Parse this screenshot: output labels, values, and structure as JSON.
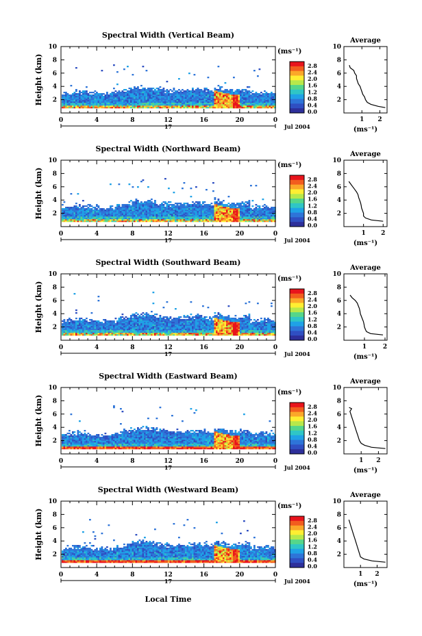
{
  "figure": {
    "xlabel": "Local Time",
    "date_label": "Jul 2004",
    "day_label": "17",
    "unit_label": "(ms⁻¹)",
    "avg_title": "Average",
    "avg_xlabel": "(ms⁻¹)"
  },
  "colorbar": {
    "ticks": [
      "2.8",
      "2.4",
      "2.0",
      "1.6",
      "1.2",
      "0.8",
      "0.4",
      "0.0"
    ],
    "colors": [
      "#e8141c",
      "#f25d1e",
      "#fba829",
      "#ffee32",
      "#b8e84a",
      "#55d68a",
      "#2fc6c6",
      "#1fa2e6",
      "#2e74d8",
      "#2f4fc2",
      "#2d2f9a"
    ]
  },
  "chart_data": [
    {
      "type": "heatmap",
      "title": "Spectral Width (Vertical Beam)",
      "xlabel": "",
      "ylabel": "Height (km)",
      "xlim": [
        0,
        24
      ],
      "ylim": [
        0,
        10
      ],
      "x_ticks": [
        "0",
        "4",
        "8",
        "12",
        "16",
        "20",
        "0"
      ],
      "y_ticks": [
        "10",
        "8",
        "6",
        "4",
        "2"
      ],
      "colorbar_range": [
        0.0,
        2.8
      ],
      "average_profile": {
        "xlabel": "(ms⁻¹)",
        "ylabel": "",
        "xlim": [
          0,
          2.4
        ],
        "ylim": [
          0,
          10
        ],
        "x_ticks": [
          "1",
          "2"
        ],
        "y_ticks": [
          "10",
          "8",
          "6",
          "4",
          "2"
        ],
        "height": [
          0.8,
          1.0,
          1.3,
          1.6,
          2.0,
          2.4,
          2.8,
          3.2,
          3.6,
          4.0,
          4.4,
          4.8,
          5.2,
          5.6,
          6.0,
          6.4,
          6.8,
          7.2
        ],
        "width": [
          2.3,
          1.9,
          1.5,
          1.3,
          1.2,
          1.15,
          1.05,
          1.0,
          0.95,
          0.9,
          0.8,
          0.75,
          0.7,
          0.7,
          0.6,
          0.55,
          0.35,
          0.3
        ]
      }
    },
    {
      "type": "heatmap",
      "title": "Spectral Width (Northward Beam)",
      "xlabel": "",
      "ylabel": "Height (km)",
      "xlim": [
        0,
        24
      ],
      "ylim": [
        0,
        10
      ],
      "x_ticks": [
        "0",
        "4",
        "8",
        "12",
        "16",
        "20",
        "0"
      ],
      "y_ticks": [
        "10",
        "8",
        "6",
        "4",
        "2"
      ],
      "colorbar_range": [
        0.0,
        2.8
      ],
      "average_profile": {
        "xlabel": "(ms⁻¹)",
        "ylabel": "",
        "xlim": [
          0,
          2.2
        ],
        "ylim": [
          0,
          10
        ],
        "x_ticks": [
          "1",
          "2"
        ],
        "y_ticks": [
          "10",
          "8",
          "6",
          "4",
          "2"
        ],
        "height": [
          0.8,
          1.0,
          1.3,
          1.6,
          2.0,
          2.4,
          2.8,
          3.2,
          3.6,
          4.0,
          4.4,
          4.8,
          5.2,
          5.6,
          6.0,
          6.4,
          6.8
        ],
        "width": [
          2.0,
          1.4,
          1.1,
          1.0,
          1.0,
          0.95,
          0.9,
          0.88,
          0.85,
          0.8,
          0.75,
          0.72,
          0.65,
          0.55,
          0.45,
          0.35,
          0.25
        ]
      }
    },
    {
      "type": "heatmap",
      "title": "Spectral Width (Southward Beam)",
      "xlabel": "",
      "ylabel": "Height (km)",
      "xlim": [
        0,
        24
      ],
      "ylim": [
        0,
        10
      ],
      "x_ticks": [
        "0",
        "4",
        "8",
        "12",
        "16",
        "20",
        "0"
      ],
      "y_ticks": [
        "10",
        "8",
        "6",
        "4",
        "2"
      ],
      "colorbar_range": [
        0.0,
        2.8
      ],
      "average_profile": {
        "xlabel": "(ms⁻¹)",
        "ylabel": "",
        "xlim": [
          0,
          2.1
        ],
        "ylim": [
          0,
          10
        ],
        "x_ticks": [
          "1",
          "2"
        ],
        "y_ticks": [
          "10",
          "8",
          "6",
          "4",
          "2"
        ],
        "height": [
          0.8,
          1.0,
          1.3,
          1.6,
          2.0,
          2.4,
          2.8,
          3.2,
          3.6,
          4.0,
          4.4,
          4.8,
          5.2,
          5.6,
          6.0,
          6.4,
          6.8
        ],
        "width": [
          1.9,
          1.3,
          1.1,
          1.05,
          1.0,
          0.98,
          0.95,
          0.9,
          0.85,
          0.8,
          0.78,
          0.75,
          0.7,
          0.65,
          0.55,
          0.4,
          0.3
        ]
      }
    },
    {
      "type": "heatmap",
      "title": "Spectral Width (Eastward Beam)",
      "xlabel": "",
      "ylabel": "Height (km)",
      "xlim": [
        0,
        24
      ],
      "ylim": [
        0,
        10
      ],
      "x_ticks": [
        "0",
        "4",
        "8",
        "12",
        "16",
        "20",
        "0"
      ],
      "y_ticks": [
        "10",
        "8",
        "6",
        "4",
        "2"
      ],
      "colorbar_range": [
        0.0,
        2.8
      ],
      "average_profile": {
        "xlabel": "(ms⁻¹)",
        "ylabel": "",
        "xlim": [
          0,
          2.5
        ],
        "ylim": [
          0,
          10
        ],
        "x_ticks": [
          "1",
          "2"
        ],
        "y_ticks": [
          "10",
          "8",
          "6",
          "4",
          "2"
        ],
        "height": [
          0.8,
          1.0,
          1.3,
          1.6,
          2.0,
          2.4,
          2.8,
          3.2,
          3.6,
          4.0,
          4.4,
          4.8,
          5.2,
          5.6,
          6.0,
          6.4,
          6.8,
          7.0
        ],
        "width": [
          2.4,
          1.6,
          1.2,
          1.0,
          0.9,
          0.85,
          0.8,
          0.75,
          0.7,
          0.65,
          0.6,
          0.55,
          0.5,
          0.45,
          0.4,
          0.35,
          0.45,
          0.3
        ]
      }
    },
    {
      "type": "heatmap",
      "title": "Spectral Width (Westward Beam)",
      "xlabel": "Local Time",
      "ylabel": "Height (km)",
      "xlim": [
        0,
        24
      ],
      "ylim": [
        0,
        10
      ],
      "x_ticks": [
        "0",
        "4",
        "8",
        "12",
        "16",
        "20",
        "0"
      ],
      "y_ticks": [
        "10",
        "8",
        "6",
        "4",
        "2"
      ],
      "colorbar_range": [
        0.0,
        2.8
      ],
      "average_profile": {
        "xlabel": "(ms⁻¹)",
        "ylabel": "",
        "xlim": [
          0,
          2.6
        ],
        "ylim": [
          0,
          10
        ],
        "x_ticks": [
          "1",
          "2"
        ],
        "y_ticks": [
          "10",
          "8",
          "6",
          "4",
          "2"
        ],
        "height": [
          0.8,
          1.0,
          1.3,
          1.6,
          2.0,
          2.4,
          2.8,
          3.2,
          3.6,
          4.0,
          4.4,
          4.8,
          5.2,
          5.6,
          6.0,
          6.4,
          6.8,
          7.2
        ],
        "width": [
          2.5,
          1.7,
          1.2,
          1.0,
          0.95,
          0.9,
          0.85,
          0.8,
          0.75,
          0.7,
          0.65,
          0.6,
          0.55,
          0.5,
          0.45,
          0.4,
          0.35,
          0.3
        ]
      }
    }
  ]
}
